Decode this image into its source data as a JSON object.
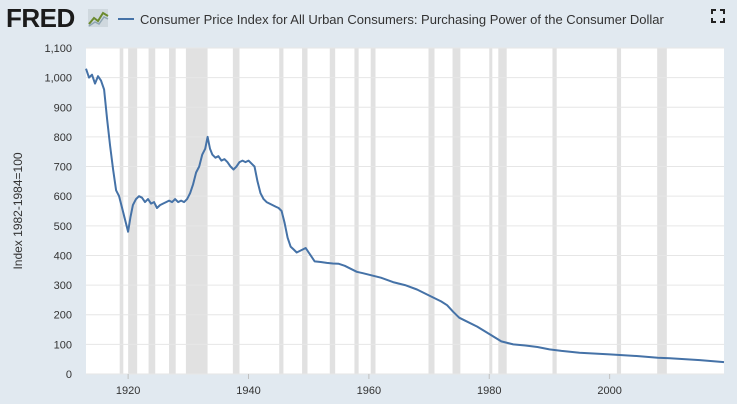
{
  "header": {
    "logo_text": "FRED",
    "logo_icon": "fred-graph-icon",
    "legend_label": "Consumer Price Index for All Urban Consumers: Purchasing Power of the Consumer Dollar",
    "expand_icon": "expand-icon"
  },
  "colors": {
    "series": "#4572a7",
    "plot_background": "#ffffff",
    "page_background": "#e1e9f0",
    "recession_band": "#e1e1e1",
    "gridline": "#e6e6e6"
  },
  "chart_data": {
    "type": "line",
    "title": "",
    "xlabel": "",
    "ylabel": "Index 1982-1984=100",
    "xlim": [
      1913,
      2019
    ],
    "ylim": [
      0,
      1100
    ],
    "x_ticks": [
      "1920",
      "1940",
      "1960",
      "1980",
      "2000"
    ],
    "y_ticks": [
      "0",
      "100",
      "200",
      "300",
      "400",
      "500",
      "600",
      "700",
      "800",
      "900",
      "1,000",
      "1,100"
    ],
    "grid": true,
    "legend_position": "top",
    "recession_periods": [
      [
        1918.6,
        1919.2
      ],
      [
        1920.0,
        1921.5
      ],
      [
        1923.4,
        1924.5
      ],
      [
        1926.8,
        1927.9
      ],
      [
        1929.6,
        1933.2
      ],
      [
        1937.4,
        1938.5
      ],
      [
        1945.1,
        1945.8
      ],
      [
        1948.9,
        1949.8
      ],
      [
        1953.5,
        1954.4
      ],
      [
        1957.6,
        1958.3
      ],
      [
        1960.3,
        1961.1
      ],
      [
        1969.9,
        1970.9
      ],
      [
        1973.9,
        1975.2
      ],
      [
        1980.0,
        1980.5
      ],
      [
        1981.5,
        1982.9
      ],
      [
        1990.5,
        1991.2
      ],
      [
        2001.2,
        2001.9
      ],
      [
        2007.9,
        2009.5
      ]
    ],
    "series": [
      {
        "name": "Consumer Price Index for All Urban Consumers: Purchasing Power of the Consumer Dollar",
        "x": [
          1913.0,
          1913.5,
          1914.0,
          1914.5,
          1915.0,
          1915.5,
          1916.0,
          1916.5,
          1917.0,
          1917.5,
          1918.0,
          1918.5,
          1919.0,
          1919.5,
          1920.0,
          1920.4,
          1920.8,
          1921.3,
          1921.8,
          1922.3,
          1922.8,
          1923.3,
          1923.8,
          1924.3,
          1924.8,
          1925.3,
          1925.8,
          1926.3,
          1926.8,
          1927.3,
          1927.8,
          1928.3,
          1928.8,
          1929.3,
          1929.8,
          1930.3,
          1930.8,
          1931.3,
          1931.8,
          1932.3,
          1932.8,
          1933.2,
          1933.6,
          1934.0,
          1934.5,
          1935.0,
          1935.5,
          1936.0,
          1936.5,
          1937.0,
          1937.5,
          1938.0,
          1938.5,
          1939.0,
          1939.5,
          1940.0,
          1940.5,
          1941.0,
          1941.5,
          1942.0,
          1942.5,
          1943.0,
          1943.5,
          1944.0,
          1944.5,
          1945.0,
          1945.5,
          1946.0,
          1946.5,
          1947.0,
          1947.5,
          1948.0,
          1948.5,
          1949.0,
          1949.5,
          1950.0,
          1950.5,
          1951.0,
          1952.0,
          1953.0,
          1954.0,
          1955.0,
          1956.0,
          1957.0,
          1958.0,
          1959.0,
          1960.0,
          1962.0,
          1964.0,
          1966.0,
          1968.0,
          1970.0,
          1972.0,
          1973.0,
          1974.0,
          1975.0,
          1976.0,
          1978.0,
          1980.0,
          1982.0,
          1984.0,
          1986.0,
          1988.0,
          1990.0,
          1992.0,
          1995.0,
          2000.0,
          2005.0,
          2008.0,
          2010.0,
          2015.0,
          2019.0
        ],
        "values": [
          1030,
          1000,
          1010,
          980,
          1005,
          990,
          960,
          860,
          770,
          690,
          620,
          600,
          560,
          520,
          480,
          530,
          570,
          590,
          600,
          595,
          580,
          590,
          575,
          580,
          560,
          570,
          575,
          580,
          585,
          580,
          590,
          580,
          585,
          580,
          590,
          610,
          640,
          680,
          700,
          740,
          760,
          800,
          760,
          740,
          730,
          735,
          720,
          725,
          715,
          700,
          690,
          700,
          715,
          720,
          715,
          720,
          710,
          700,
          650,
          610,
          590,
          580,
          575,
          570,
          565,
          560,
          550,
          510,
          460,
          430,
          420,
          410,
          415,
          420,
          425,
          410,
          395,
          380,
          378,
          375,
          373,
          372,
          365,
          355,
          345,
          340,
          335,
          325,
          310,
          300,
          285,
          265,
          245,
          232,
          210,
          190,
          180,
          160,
          135,
          110,
          100,
          96,
          91,
          83,
          78,
          72,
          66,
          60,
          55,
          53,
          47,
          40
        ]
      }
    ]
  }
}
